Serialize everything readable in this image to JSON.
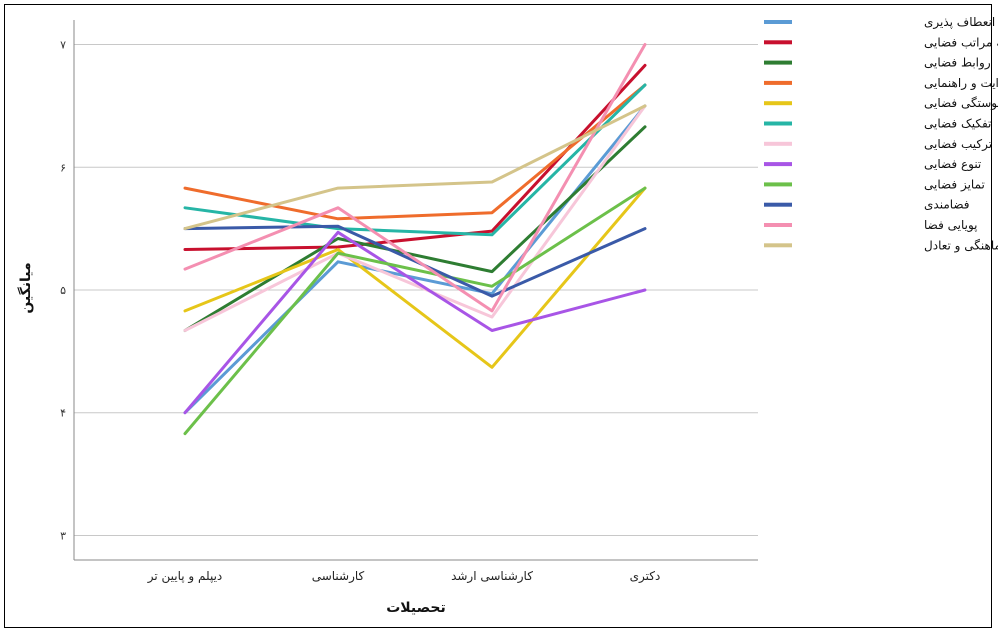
{
  "chart_data": {
    "type": "line",
    "title": "",
    "xlabel": "تحصیلات",
    "ylabel": "میانگین",
    "ylim": [
      2.8,
      7.2
    ],
    "yticks": [
      3,
      4,
      5,
      6,
      7
    ],
    "ytick_labels": [
      "۳",
      "۴",
      "۵",
      "۶",
      "۷"
    ],
    "grid": true,
    "legend_position": "top-right",
    "categories": [
      "دیپلم و پایین تر",
      "کارشناسی",
      "کارشناسی ارشد",
      "دکتری"
    ],
    "series": [
      {
        "name": "انعطاف پذیری",
        "color": "#5b9bd5",
        "values": [
          4.0,
          5.23,
          4.97,
          6.5
        ]
      },
      {
        "name": "سلسله مراتب فضایی",
        "color": "#c8102e",
        "values": [
          5.33,
          5.35,
          5.48,
          6.83
        ]
      },
      {
        "name": "روابط فضایی",
        "color": "#2e7d32",
        "values": [
          4.67,
          5.42,
          5.15,
          6.33
        ]
      },
      {
        "name": "هدایت و راهنمایی",
        "color": "#ef6c2c",
        "values": [
          5.83,
          5.58,
          5.63,
          6.67
        ]
      },
      {
        "name": "پیوستگی فضایی",
        "color": "#e6c619",
        "values": [
          4.83,
          5.33,
          4.37,
          5.83
        ]
      },
      {
        "name": "تفکیک فضایی",
        "color": "#26b5a6",
        "values": [
          5.67,
          5.5,
          5.45,
          6.67
        ]
      },
      {
        "name": "ترکیب فضایی",
        "color": "#f7c6d9",
        "values": [
          4.67,
          5.3,
          4.78,
          6.5
        ]
      },
      {
        "name": "تنوع فضایی",
        "color": "#a855e6",
        "values": [
          4.0,
          5.47,
          4.67,
          5.0
        ]
      },
      {
        "name": "تمایز فضایی",
        "color": "#6cc04a",
        "values": [
          3.83,
          5.3,
          5.03,
          5.83
        ]
      },
      {
        "name": "فضامندی",
        "color": "#3a5aa8",
        "values": [
          5.5,
          5.52,
          4.95,
          5.5
        ]
      },
      {
        "name": "پویایی فضا",
        "color": "#f48fb1",
        "values": [
          5.17,
          5.67,
          4.83,
          7.0
        ]
      },
      {
        "name": "هماهنگی و تعادل",
        "color": "#d4c48a",
        "values": [
          5.5,
          5.83,
          5.88,
          6.5
        ]
      }
    ]
  }
}
